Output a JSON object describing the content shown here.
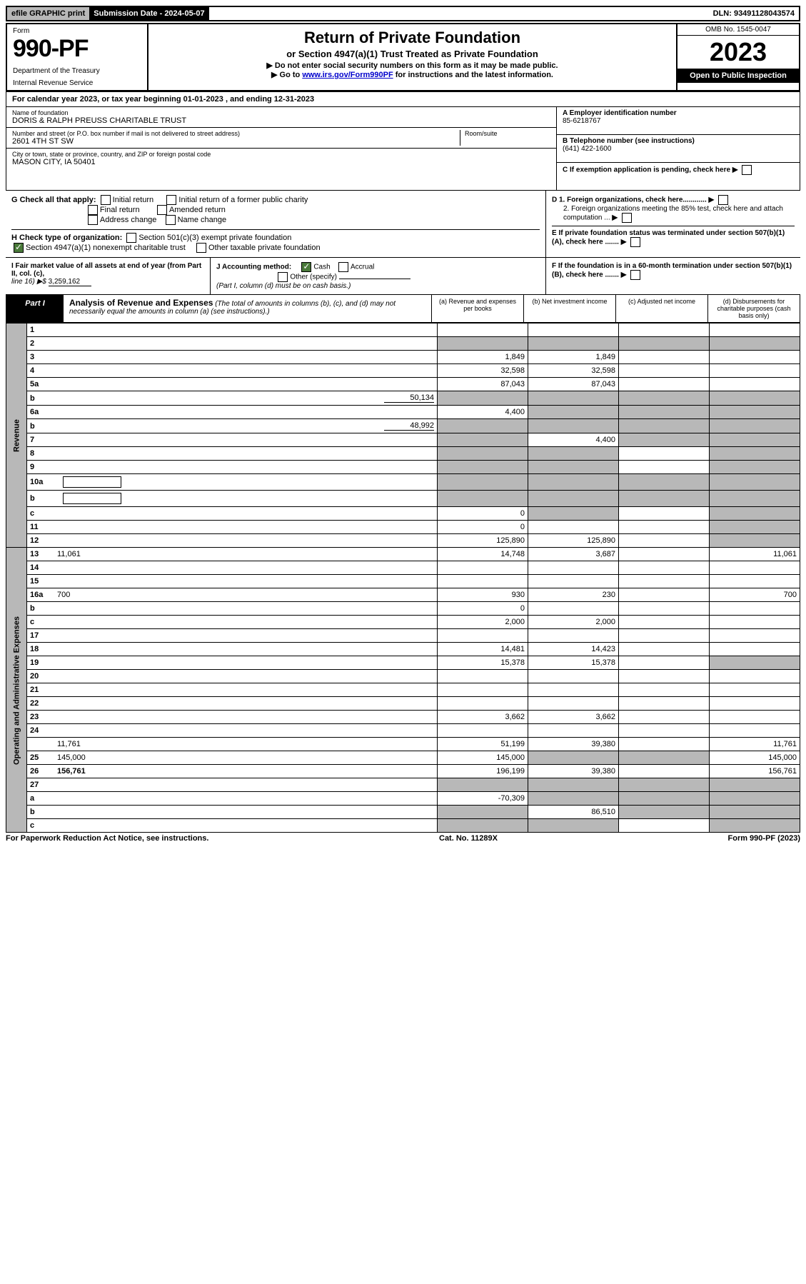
{
  "topbar": {
    "efile": "efile GRAPHIC print",
    "submission": "Submission Date - 2024-05-07",
    "dln": "DLN: 93491128043574"
  },
  "header": {
    "form_label": "Form",
    "form_number": "990-PF",
    "dept1": "Department of the Treasury",
    "dept2": "Internal Revenue Service",
    "title": "Return of Private Foundation",
    "subtitle": "or Section 4947(a)(1) Trust Treated as Private Foundation",
    "note1": "▶ Do not enter social security numbers on this form as it may be made public.",
    "note2_pre": "▶ Go to ",
    "note2_link": "www.irs.gov/Form990PF",
    "note2_post": " for instructions and the latest information.",
    "omb": "OMB No. 1545-0047",
    "year": "2023",
    "open": "Open to Public Inspection"
  },
  "calendar": "For calendar year 2023, or tax year beginning 01-01-2023                    , and ending 12-31-2023",
  "info": {
    "name_label": "Name of foundation",
    "name": "DORIS & RALPH PREUSS CHARITABLE TRUST",
    "addr_label": "Number and street (or P.O. box number if mail is not delivered to street address)",
    "room_label": "Room/suite",
    "addr": "2601 4TH ST SW",
    "city_label": "City or town, state or province, country, and ZIP or foreign postal code",
    "city": "MASON CITY, IA  50401",
    "a_label": "A Employer identification number",
    "a_val": "85-6218767",
    "b_label": "B Telephone number (see instructions)",
    "b_val": "(641) 422-1600",
    "c_label": "C If exemption application is pending, check here"
  },
  "g": {
    "label": "G Check all that apply:",
    "opt1": "Initial return",
    "opt2": "Initial return of a former public charity",
    "opt3": "Final return",
    "opt4": "Amended return",
    "opt5": "Address change",
    "opt6": "Name change"
  },
  "h": {
    "label": "H Check type of organization:",
    "opt1": "Section 501(c)(3) exempt private foundation",
    "opt2": "Section 4947(a)(1) nonexempt charitable trust",
    "opt3": "Other taxable private foundation"
  },
  "d": {
    "d1": "D 1. Foreign organizations, check here............",
    "d2": "2. Foreign organizations meeting the 85% test, check here and attach computation ...",
    "e": "E  If private foundation status was terminated under section 507(b)(1)(A), check here .......",
    "f": "F  If the foundation is in a 60-month termination under section 507(b)(1)(B), check here ......."
  },
  "i": {
    "label": "I Fair market value of all assets at end of year (from Part II, col. (c),",
    "line": "line 16) ▶$ ",
    "val": "3,259,162"
  },
  "j": {
    "label": "J Accounting method:",
    "cash": "Cash",
    "accrual": "Accrual",
    "other": "Other (specify)",
    "note": "(Part I, column (d) must be on cash basis.)"
  },
  "part1": {
    "label": "Part I",
    "title": "Analysis of Revenue and Expenses",
    "desc": " (The total of amounts in columns (b), (c), and (d) may not necessarily equal the amounts in column (a) (see instructions).)",
    "col_a": "(a)   Revenue and expenses per books",
    "col_b": "(b)   Net investment income",
    "col_c": "(c)   Adjusted net income",
    "col_d": "(d)   Disbursements for charitable purposes (cash basis only)"
  },
  "side": {
    "revenue": "Revenue",
    "expenses": "Operating and Administrative Expenses"
  },
  "rows": [
    {
      "n": "1",
      "d": "",
      "a": "",
      "b": "",
      "c": "",
      "grey_cd": false
    },
    {
      "n": "2",
      "d": "",
      "a": "",
      "b": "",
      "c": "",
      "grey_all": true
    },
    {
      "n": "3",
      "d": "",
      "a": "1,849",
      "b": "1,849",
      "c": ""
    },
    {
      "n": "4",
      "d": "",
      "a": "32,598",
      "b": "32,598",
      "c": ""
    },
    {
      "n": "5a",
      "d": "",
      "a": "87,043",
      "b": "87,043",
      "c": ""
    },
    {
      "n": "b",
      "d": "",
      "inline": "50,134",
      "a": "",
      "b": "",
      "c": "",
      "grey_all": true
    },
    {
      "n": "6a",
      "d": "",
      "a": "4,400",
      "b": "",
      "c": "",
      "grey_bcd": true
    },
    {
      "n": "b",
      "d": "",
      "inline": "48,992",
      "a": "",
      "b": "",
      "c": "",
      "grey_all": true
    },
    {
      "n": "7",
      "d": "",
      "a": "",
      "b": "4,400",
      "c": "",
      "grey_a": true,
      "grey_cd": true
    },
    {
      "n": "8",
      "d": "",
      "a": "",
      "b": "",
      "c": "",
      "grey_ab": true,
      "grey_d": true
    },
    {
      "n": "9",
      "d": "",
      "a": "",
      "b": "",
      "c": "",
      "grey_ab": true,
      "grey_d": true
    },
    {
      "n": "10a",
      "d": "",
      "box": true,
      "a": "",
      "b": "",
      "c": "",
      "grey_all": true
    },
    {
      "n": "b",
      "d": "",
      "box": true,
      "a": "",
      "b": "",
      "c": "",
      "grey_all": true
    },
    {
      "n": "c",
      "d": "",
      "a": "0",
      "b": "",
      "c": "",
      "grey_b": true,
      "grey_d": true
    },
    {
      "n": "11",
      "d": "",
      "a": "0",
      "b": "",
      "c": "",
      "grey_d": true
    },
    {
      "n": "12",
      "d": "",
      "bold": true,
      "a": "125,890",
      "b": "125,890",
      "c": "",
      "grey_d": true
    },
    {
      "n": "13",
      "d": "11,061",
      "a": "14,748",
      "b": "3,687",
      "c": ""
    },
    {
      "n": "14",
      "d": "",
      "a": "",
      "b": "",
      "c": ""
    },
    {
      "n": "15",
      "d": "",
      "a": "",
      "b": "",
      "c": ""
    },
    {
      "n": "16a",
      "d": "700",
      "a": "930",
      "b": "230",
      "c": ""
    },
    {
      "n": "b",
      "d": "",
      "a": "0",
      "b": "",
      "c": ""
    },
    {
      "n": "c",
      "d": "",
      "a": "2,000",
      "b": "2,000",
      "c": ""
    },
    {
      "n": "17",
      "d": "",
      "a": "",
      "b": "",
      "c": ""
    },
    {
      "n": "18",
      "d": "",
      "a": "14,481",
      "b": "14,423",
      "c": ""
    },
    {
      "n": "19",
      "d": "",
      "a": "15,378",
      "b": "15,378",
      "c": "",
      "grey_d": true
    },
    {
      "n": "20",
      "d": "",
      "a": "",
      "b": "",
      "c": ""
    },
    {
      "n": "21",
      "d": "",
      "a": "",
      "b": "",
      "c": ""
    },
    {
      "n": "22",
      "d": "",
      "a": "",
      "b": "",
      "c": ""
    },
    {
      "n": "23",
      "d": "",
      "a": "3,662",
      "b": "3,662",
      "c": ""
    },
    {
      "n": "24",
      "d": "",
      "bold": true,
      "a": "",
      "b": "",
      "c": "",
      "noborder": true
    },
    {
      "n": "",
      "d": "11,761",
      "a": "51,199",
      "b": "39,380",
      "c": ""
    },
    {
      "n": "25",
      "d": "145,000",
      "a": "145,000",
      "b": "",
      "c": "",
      "grey_bc": true
    },
    {
      "n": "26",
      "d": "156,761",
      "bold": true,
      "a": "196,199",
      "b": "39,380",
      "c": ""
    },
    {
      "n": "27",
      "d": "",
      "bold": true,
      "a": "",
      "b": "",
      "c": "",
      "grey_all": true
    },
    {
      "n": "a",
      "d": "",
      "bold": true,
      "a": "-70,309",
      "b": "",
      "c": "",
      "grey_bcd": true
    },
    {
      "n": "b",
      "d": "",
      "bold": true,
      "a": "",
      "b": "86,510",
      "c": "",
      "grey_a": true,
      "grey_cd": true
    },
    {
      "n": "c",
      "d": "",
      "bold": true,
      "a": "",
      "b": "",
      "c": "",
      "grey_ab": true,
      "grey_d": true
    }
  ],
  "footer": {
    "left": "For Paperwork Reduction Act Notice, see instructions.",
    "mid": "Cat. No. 11289X",
    "right": "Form 990-PF (2023)"
  }
}
